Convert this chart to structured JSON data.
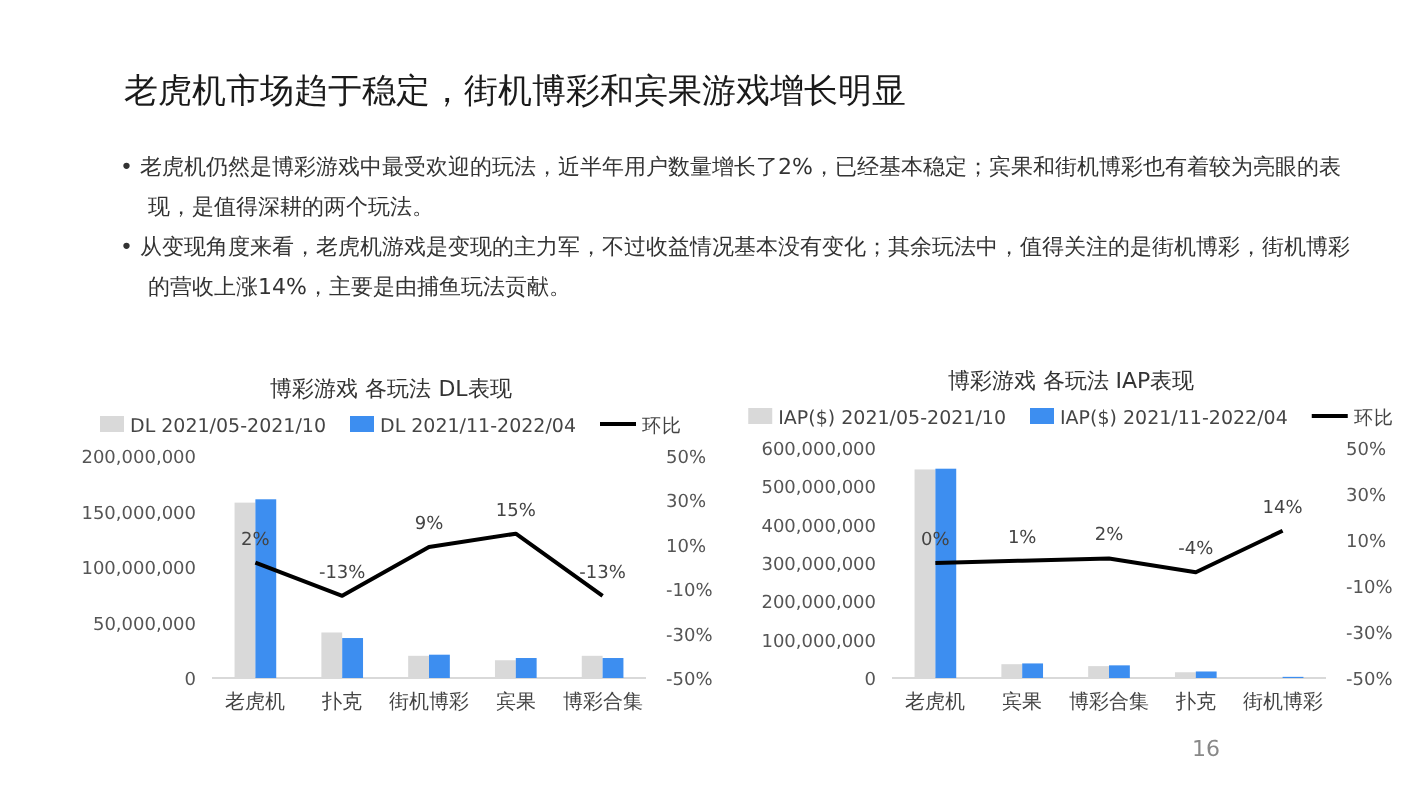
{
  "chart_data": [
    {
      "type": "other",
      "title": "老虎机市场趋于稳定，街机博彩和宾果游戏增长明显",
      "annotations": [
        "• 老虎机仍然是博彩游戏中最受欢迎的玩法，近半年用户数量增长了2%，已经基本稳定；宾果和街机博彩也有着较为亮眼的表现，是值得深耕的两个玩法。",
        "• 从变现角度来看，老虎机游戏是变现的主力军，不过收益情况基本没有变化；其余玩法中，值得关注的是街机博彩，街机博彩的营收上涨14%，主要是由捕鱼玩法贡献。",
        "16"
      ]
    },
    {
      "type": "bar",
      "title": "博彩游戏 各玩法 DL表现",
      "categories": [
        "老虎机",
        "扑克",
        "街机博彩",
        "宾果",
        "博彩合集"
      ],
      "legend": "top",
      "ylim": [
        0,
        200000000
      ],
      "yticks": [
        0,
        {
          "value": 50000000,
          "label": "50,000,000"
        },
        {
          "value": 100000000,
          "label": "100,000,000"
        },
        {
          "value": 150000000,
          "label": "150,000,000"
        },
        {
          "value": 200000000,
          "label": "200,000,000"
        }
      ],
      "y2lim": [
        -50,
        50
      ],
      "y2ticks": [
        {
          "value": -50,
          "label": "-50%"
        },
        {
          "value": -30,
          "label": "-30%"
        },
        {
          "value": -10,
          "label": "-10%"
        },
        {
          "value": 10,
          "label": "10%"
        },
        {
          "value": 30,
          "label": "30%"
        },
        {
          "value": 50,
          "label": "50%"
        }
      ],
      "series": [
        {
          "name": "DL 2021/05-2021/10",
          "color": "#d9d9d9",
          "values": [
            158000000,
            41000000,
            20000000,
            16000000,
            20000000
          ]
        },
        {
          "name": "DL 2021/11-2022/04",
          "color": "#3d8ef0",
          "values": [
            161000000,
            36000000,
            21000000,
            18000000,
            18000000
          ]
        },
        {
          "name": "环比",
          "type": "line",
          "axis": "y2",
          "color": "#000000",
          "values": [
            2,
            -13,
            9,
            15,
            -13
          ],
          "value_labels": [
            "2%",
            "-13%",
            "9%",
            "15%",
            "-13%"
          ]
        }
      ]
    },
    {
      "type": "bar",
      "title": "博彩游戏 各玩法 IAP表现",
      "categories": [
        "老虎机",
        "宾果",
        "博彩合集",
        "扑克",
        "街机博彩"
      ],
      "legend": "top",
      "ylim": [
        0,
        600000000
      ],
      "yticks": [
        0,
        {
          "value": 100000000,
          "label": "100,000,000"
        },
        {
          "value": 200000000,
          "label": "200,000,000"
        },
        {
          "value": 300000000,
          "label": "300,000,000"
        },
        {
          "value": 400000000,
          "label": "400,000,000"
        },
        {
          "value": 500000000,
          "label": "500,000,000"
        },
        {
          "value": 600000000,
          "label": "600,000,000"
        }
      ],
      "y2lim": [
        -50,
        50
      ],
      "y2ticks": [
        {
          "value": -50,
          "label": "-50%"
        },
        {
          "value": -30,
          "label": "-30%"
        },
        {
          "value": -10,
          "label": "-10%"
        },
        {
          "value": 10,
          "label": "10%"
        },
        {
          "value": 30,
          "label": "30%"
        },
        {
          "value": 50,
          "label": "50%"
        }
      ],
      "series": [
        {
          "name": "IAP($) 2021/05-2021/10",
          "color": "#d9d9d9",
          "values": [
            544000000,
            36000000,
            31000000,
            15000000,
            2000000
          ]
        },
        {
          "name": "IAP($) 2021/11-2022/04",
          "color": "#3d8ef0",
          "values": [
            546000000,
            38000000,
            33000000,
            17000000,
            3000000
          ]
        },
        {
          "name": "环比",
          "type": "line",
          "axis": "y2",
          "color": "#000000",
          "values": [
            0,
            1,
            2,
            -4,
            14
          ],
          "value_labels": [
            "0%",
            "1%",
            "2%",
            "-4%",
            "14%"
          ]
        }
      ]
    }
  ]
}
